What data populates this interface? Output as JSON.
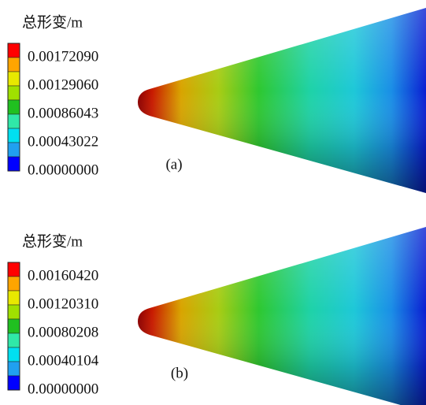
{
  "panels": [
    {
      "title": "总形变/m",
      "legend_labels": [
        "0.00172090",
        "0.00129060",
        "0.00086043",
        "0.00043022",
        "0.00000000"
      ],
      "label": "(a)"
    },
    {
      "title": "总形变/m",
      "legend_labels": [
        "0.00160420",
        "0.00120310",
        "0.00080208",
        "0.00040104",
        "0.00000000"
      ],
      "label": "(b)"
    }
  ]
}
